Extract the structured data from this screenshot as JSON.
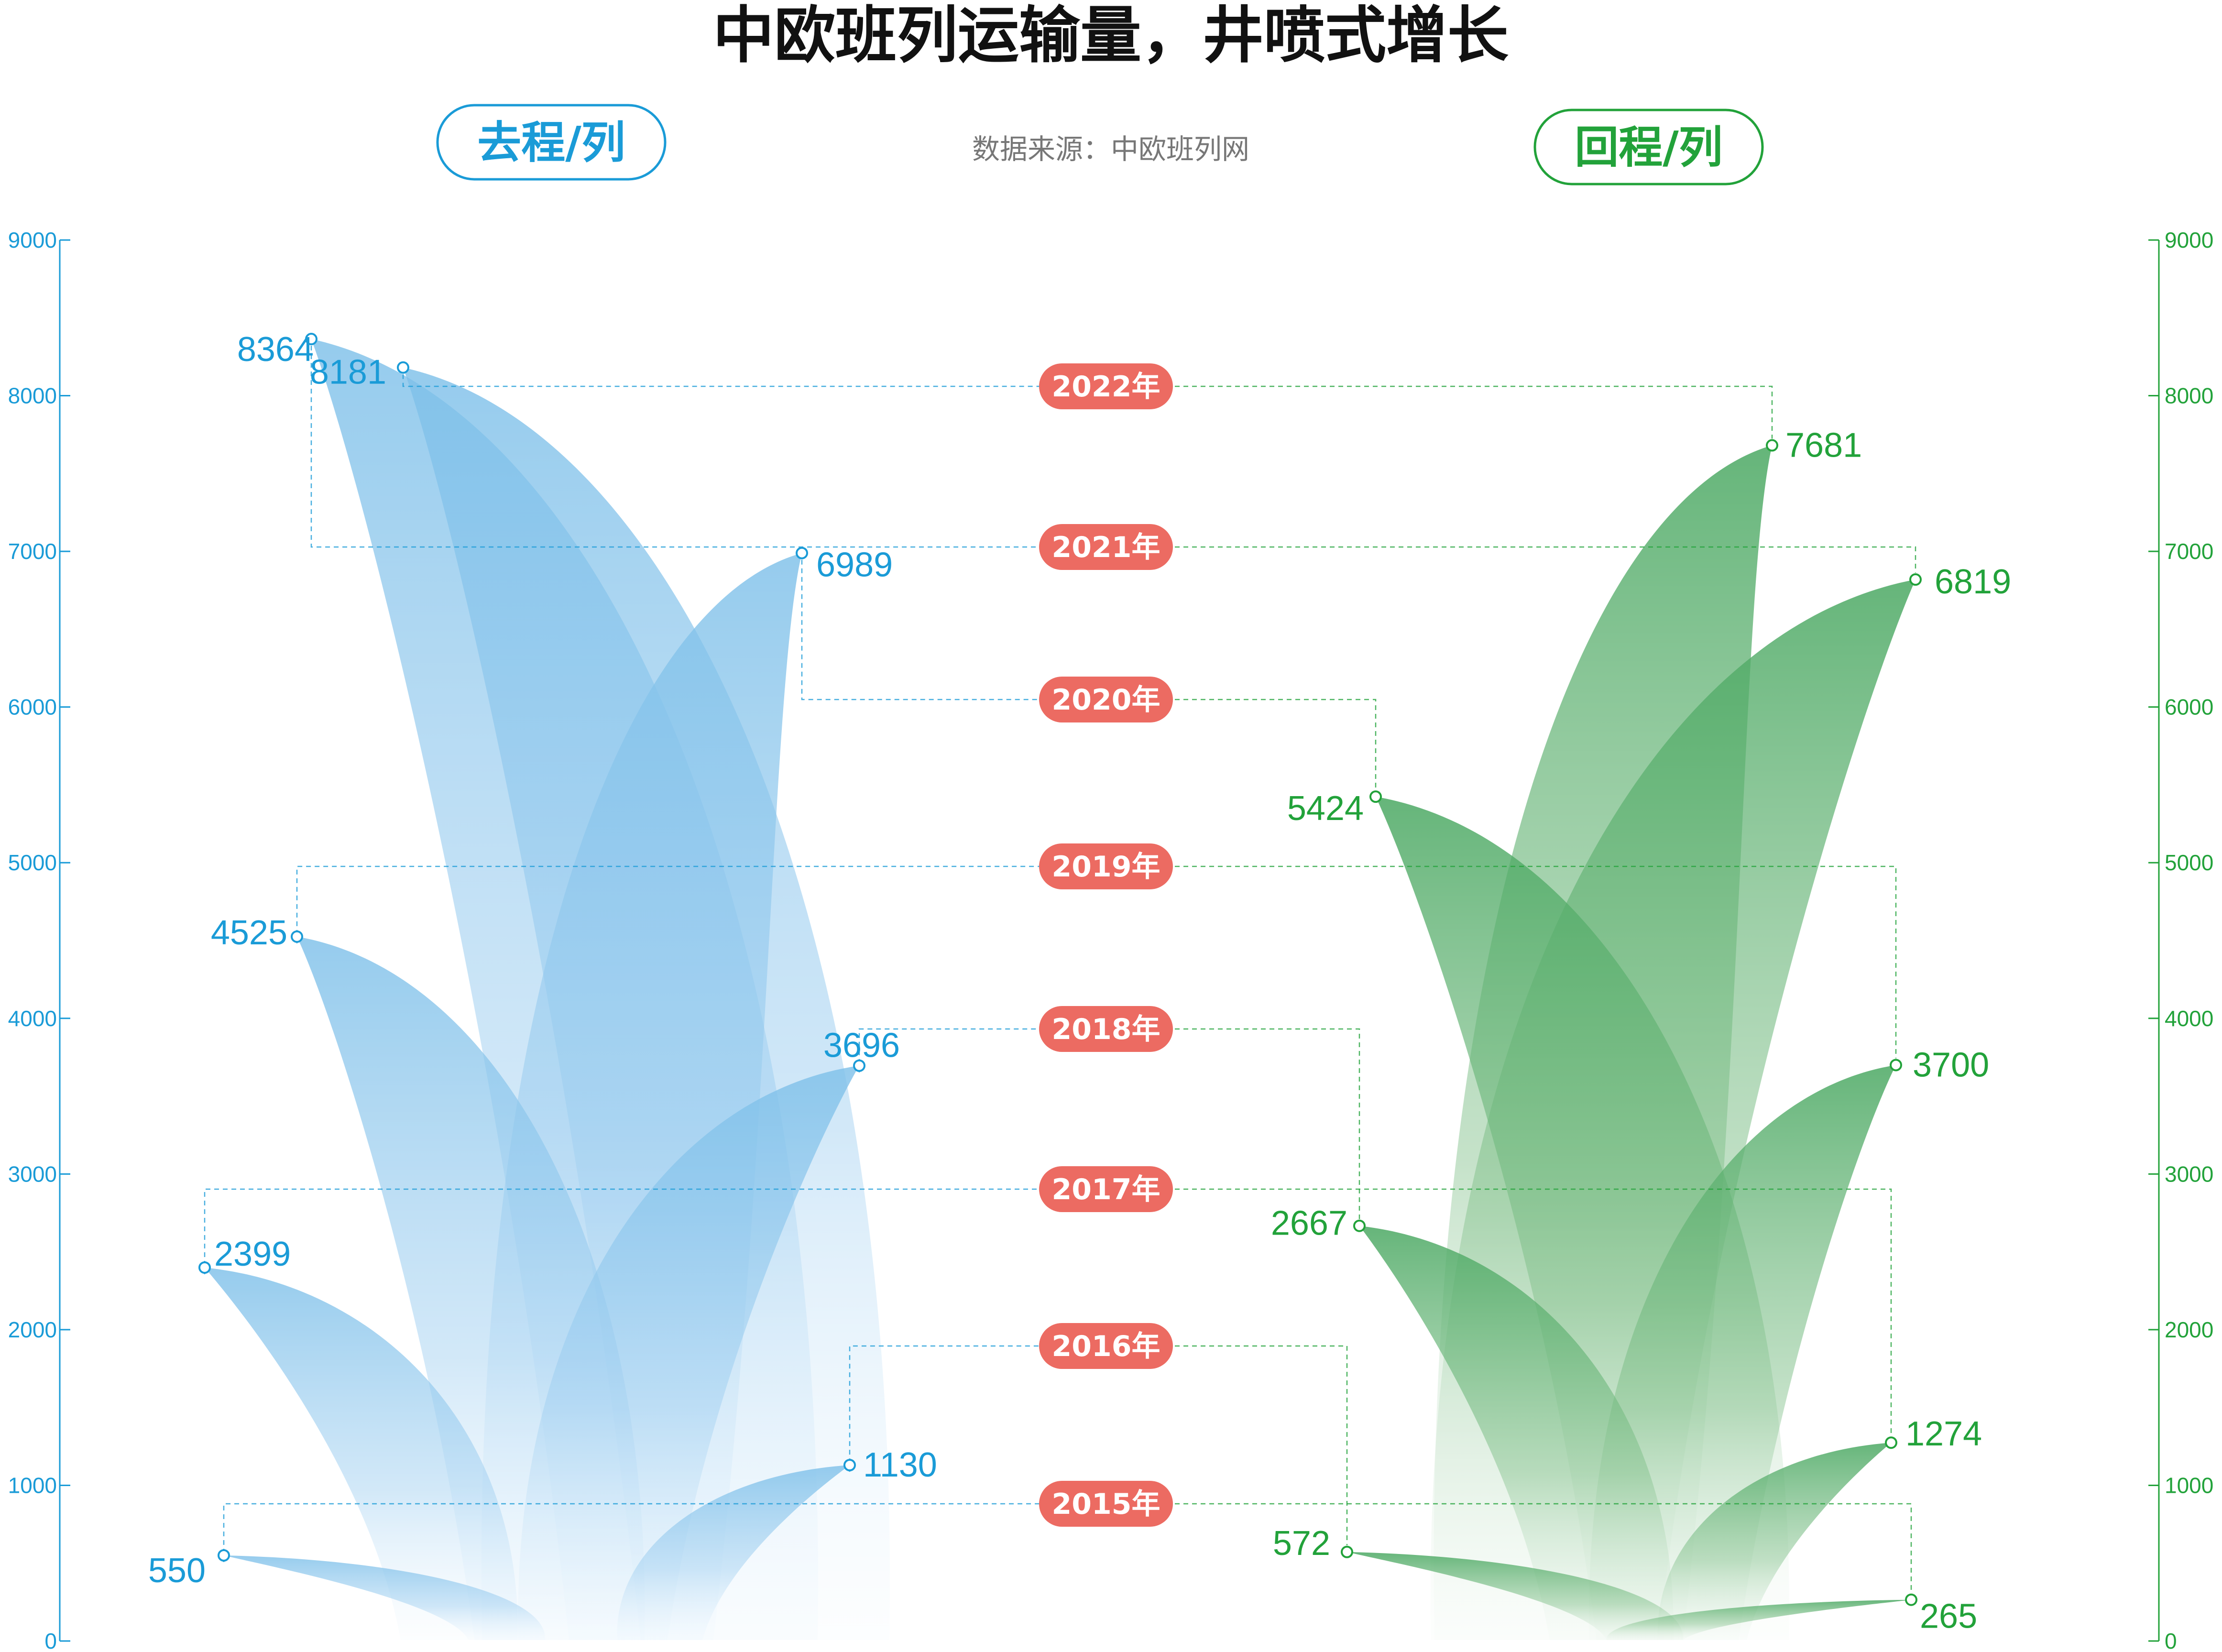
{
  "title": "中欧班列运输量，井喷式增长",
  "source": "数据来源：中欧班列网",
  "colors": {
    "outbound": "#1a9bd7",
    "return": "#22a23a",
    "outbound_fill": "#7ec0e9",
    "return_fill": "#4aa862",
    "year_badge": "#ec6b62"
  },
  "chart_data": {
    "type": "area",
    "x": [
      "2015年",
      "2016年",
      "2017年",
      "2018年",
      "2019年",
      "2020年",
      "2021年",
      "2022年"
    ],
    "ylim": [
      0,
      9000
    ],
    "yticks": [
      0,
      1000,
      2000,
      3000,
      4000,
      5000,
      6000,
      7000,
      8000,
      9000
    ],
    "series": [
      {
        "name": "去程/列",
        "values": [
          550,
          1130,
          2399,
          3696,
          4525,
          6989,
          8364,
          8181
        ]
      },
      {
        "name": "回程/列",
        "values": [
          265,
          572,
          1274,
          2667,
          3700,
          5424,
          6819,
          7681
        ]
      }
    ]
  }
}
